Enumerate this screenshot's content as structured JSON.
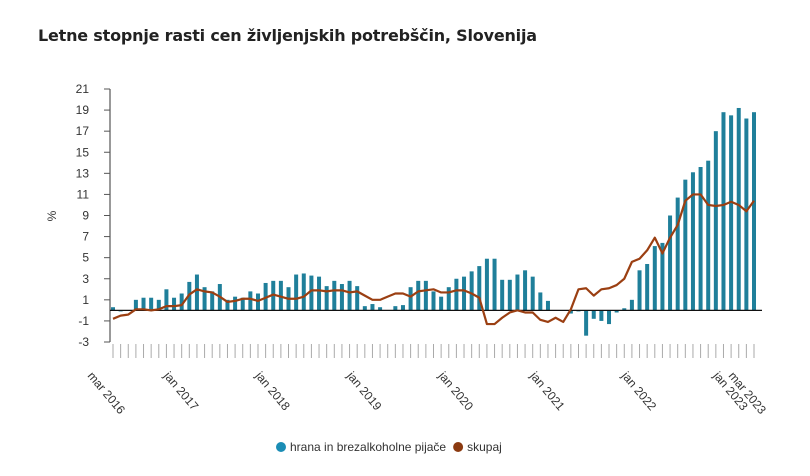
{
  "chart_data": {
    "type": "bar+line",
    "title": "Letne stopnje rasti cen življenjskih potrebščin, Slovenija",
    "ylabel": "%",
    "ylim": [
      -3,
      21
    ],
    "yticks": [
      21,
      19,
      17,
      15,
      13,
      11,
      9,
      7,
      5,
      3,
      1,
      -1,
      -3
    ],
    "x_start": "mar 2016",
    "x_end": "mar 2023",
    "xtick_labels": [
      {
        "label": "mar 2016",
        "month": "2016-03"
      },
      {
        "label": "jan 2017",
        "month": "2017-01"
      },
      {
        "label": "jan 2018",
        "month": "2018-01"
      },
      {
        "label": "jan 2019",
        "month": "2019-01"
      },
      {
        "label": "jan 2020",
        "month": "2020-01"
      },
      {
        "label": "jan 2021",
        "month": "2021-01"
      },
      {
        "label": "jan 2022",
        "month": "2022-01"
      },
      {
        "label": "jan 2023",
        "month": "2023-01"
      },
      {
        "label": "mar 2023",
        "month": "2023-03"
      }
    ],
    "legend_position": "bottom",
    "series": [
      {
        "name": "hrana in brezalkoholne pijače",
        "type": "bar",
        "color": "#1f7f9a",
        "legend_color": "#1b8db5",
        "values": [
          0.3,
          -0.1,
          0.0,
          1.0,
          1.2,
          1.2,
          1.0,
          2.0,
          1.2,
          1.6,
          2.7,
          3.4,
          2.2,
          1.8,
          2.5,
          1.0,
          1.3,
          1.2,
          1.8,
          1.6,
          2.6,
          2.8,
          2.8,
          2.2,
          3.4,
          3.5,
          3.3,
          3.2,
          2.3,
          2.8,
          2.5,
          2.8,
          2.3,
          0.4,
          0.6,
          0.3,
          0.0,
          0.4,
          0.5,
          2.2,
          2.8,
          2.8,
          1.8,
          1.3,
          2.2,
          3.0,
          3.2,
          3.7,
          4.2,
          4.9,
          4.9,
          2.9,
          2.9,
          3.4,
          3.8,
          3.2,
          1.7,
          0.9,
          0.0,
          0.0,
          -0.3,
          -0.1,
          -2.4,
          -0.8,
          -1.0,
          -1.3,
          -0.2,
          0.2,
          1.0,
          3.8,
          4.4,
          6.1,
          6.4,
          9.0,
          10.7,
          12.4,
          13.1,
          13.6,
          14.2,
          17.0,
          18.8,
          18.5,
          19.2,
          18.2,
          18.8
        ]
      },
      {
        "name": "skupaj",
        "type": "line",
        "color": "#9b3f12",
        "legend_color": "#8b3a10",
        "values": [
          -0.8,
          -0.5,
          -0.4,
          0.1,
          0.1,
          0.0,
          0.1,
          0.4,
          0.4,
          0.5,
          1.5,
          2.0,
          1.8,
          1.7,
          1.3,
          0.8,
          0.9,
          1.1,
          1.1,
          0.9,
          1.2,
          1.5,
          1.3,
          1.1,
          1.1,
          1.3,
          1.9,
          1.9,
          1.8,
          1.9,
          1.9,
          1.7,
          1.8,
          1.4,
          1.0,
          1.0,
          1.3,
          1.6,
          1.6,
          1.3,
          1.8,
          1.9,
          2.0,
          1.7,
          1.7,
          1.9,
          1.9,
          1.6,
          1.2,
          -1.3,
          -1.3,
          -0.7,
          -0.2,
          0.0,
          -0.2,
          -0.2,
          -0.9,
          -1.1,
          -0.7,
          -1.1,
          0.1,
          2.0,
          2.1,
          1.4,
          2.0,
          2.1,
          2.4,
          3.0,
          4.6,
          4.9,
          5.7,
          6.9,
          5.4,
          6.9,
          8.1,
          10.4,
          11.0,
          11.0,
          10.0,
          9.9,
          10.0,
          10.3,
          10.0,
          9.4,
          10.4
        ]
      }
    ]
  }
}
